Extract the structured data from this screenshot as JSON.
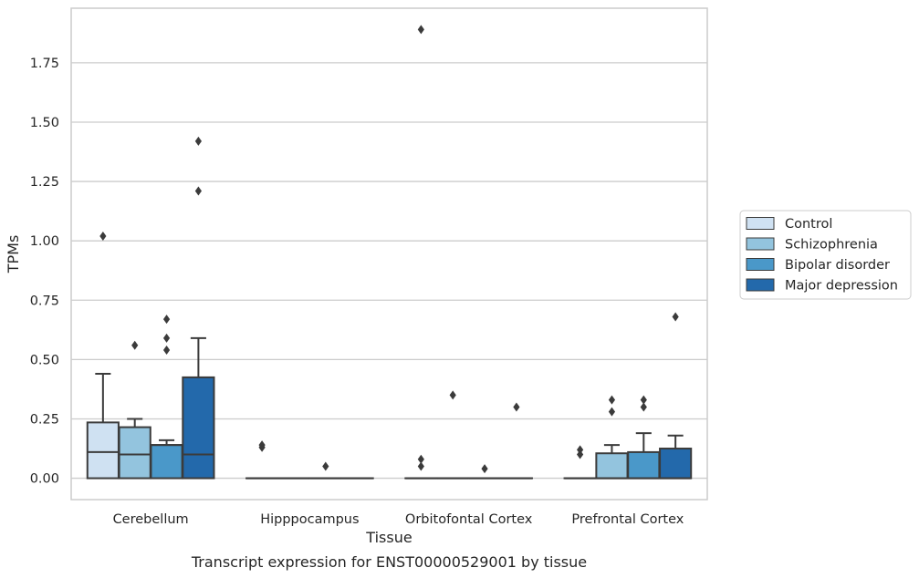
{
  "chart_data": {
    "type": "box",
    "caption": "Transcript expression for ENST00000529001 by tissue",
    "xlabel": "Tissue",
    "ylabel": "TPMs",
    "ylim": [
      -0.09,
      1.98
    ],
    "yticks": [
      "0.00",
      "0.25",
      "0.50",
      "0.75",
      "1.00",
      "1.25",
      "1.50",
      "1.75"
    ],
    "ytick_values": [
      0,
      0.25,
      0.5,
      0.75,
      1.0,
      1.25,
      1.5,
      1.75
    ],
    "grid": true,
    "legend_position": "right",
    "categories": [
      "Cerebellum",
      "Hipppocampus",
      "Orbitofontal Cortex",
      "Prefrontal Cortex"
    ],
    "series": [
      {
        "name": "Control",
        "color": "#cfe1f2",
        "boxes": [
          {
            "whisker_low": 0,
            "q1": 0,
            "median": 0.11,
            "q3": 0.235,
            "whisker_high": 0.44,
            "outliers": [
              1.02
            ]
          },
          {
            "whisker_low": 0,
            "q1": 0,
            "median": 0,
            "q3": 0,
            "whisker_high": 0,
            "outliers": [
              0.13,
              0.14
            ]
          },
          {
            "whisker_low": 0,
            "q1": 0,
            "median": 0,
            "q3": 0,
            "whisker_high": 0,
            "outliers": [
              0.05,
              0.08,
              1.89
            ]
          },
          {
            "whisker_low": 0,
            "q1": 0,
            "median": 0,
            "q3": 0,
            "whisker_high": 0,
            "outliers": [
              0.1,
              0.12
            ]
          }
        ]
      },
      {
        "name": "Schizophrenia",
        "color": "#93c4de",
        "boxes": [
          {
            "whisker_low": 0,
            "q1": 0,
            "median": 0.1,
            "q3": 0.215,
            "whisker_high": 0.25,
            "outliers": [
              0.56
            ]
          },
          {
            "whisker_low": 0,
            "q1": 0,
            "median": 0,
            "q3": 0,
            "whisker_high": 0,
            "outliers": []
          },
          {
            "whisker_low": 0,
            "q1": 0,
            "median": 0,
            "q3": 0,
            "whisker_high": 0,
            "outliers": [
              0.35
            ]
          },
          {
            "whisker_low": 0,
            "q1": 0,
            "median": 0,
            "q3": 0.105,
            "whisker_high": 0.14,
            "outliers": [
              0.28,
              0.33
            ]
          }
        ]
      },
      {
        "name": "Bipolar disorder",
        "color": "#4a98c9",
        "boxes": [
          {
            "whisker_low": 0,
            "q1": 0,
            "median": 0.14,
            "q3": 0.14,
            "whisker_high": 0.16,
            "outliers": [
              0.54,
              0.59,
              0.67
            ]
          },
          {
            "whisker_low": 0,
            "q1": 0,
            "median": 0,
            "q3": 0,
            "whisker_high": 0,
            "outliers": [
              0.05
            ]
          },
          {
            "whisker_low": 0,
            "q1": 0,
            "median": 0,
            "q3": 0,
            "whisker_high": 0,
            "outliers": [
              0.04
            ]
          },
          {
            "whisker_low": 0,
            "q1": 0,
            "median": 0,
            "q3": 0.11,
            "whisker_high": 0.19,
            "outliers": [
              0.3,
              0.33
            ]
          }
        ]
      },
      {
        "name": "Major depression",
        "color": "#2369ab",
        "boxes": [
          {
            "whisker_low": 0,
            "q1": 0,
            "median": 0.1,
            "q3": 0.425,
            "whisker_high": 0.59,
            "outliers": [
              1.21,
              1.42
            ]
          },
          {
            "whisker_low": 0,
            "q1": 0,
            "median": 0,
            "q3": 0,
            "whisker_high": 0,
            "outliers": []
          },
          {
            "whisker_low": 0,
            "q1": 0,
            "median": 0,
            "q3": 0,
            "whisker_high": 0,
            "outliers": [
              0.3
            ]
          },
          {
            "whisker_low": 0,
            "q1": 0,
            "median": 0,
            "q3": 0.125,
            "whisker_high": 0.18,
            "outliers": [
              0.68
            ]
          }
        ]
      }
    ]
  }
}
